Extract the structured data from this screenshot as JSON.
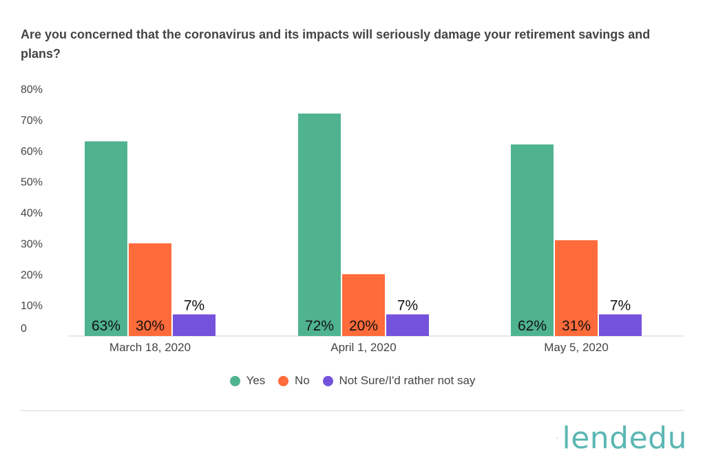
{
  "colors": {
    "yes": "#4fb390",
    "no": "#ff6b3a",
    "not_sure": "#7452dc",
    "logo": "#5bb7b3"
  },
  "chart_data": {
    "type": "bar",
    "title": "Are you concerned that the coronavirus and its impacts will seriously damage your retirement savings and plans?",
    "categories": [
      "March 18, 2020",
      "April 1, 2020",
      "May 5, 2020"
    ],
    "series": [
      {
        "name": "Yes",
        "values": [
          63,
          72,
          62
        ],
        "labels": [
          "63%",
          "72%",
          "62%"
        ],
        "color": "#4fb390"
      },
      {
        "name": "No",
        "values": [
          30,
          20,
          31
        ],
        "labels": [
          "30%",
          "20%",
          "31%"
        ],
        "color": "#ff6b3a"
      },
      {
        "name": "Not Sure/I'd rather not say",
        "values": [
          7,
          7,
          7
        ],
        "labels": [
          "7%",
          "7%",
          "7%"
        ],
        "color": "#7452dc"
      }
    ],
    "yticks": [
      "0",
      "10%",
      "20%",
      "30%",
      "40%",
      "50%",
      "60%",
      "70%",
      "80%"
    ],
    "ylim": [
      0,
      80
    ],
    "grid": false,
    "legend": "bottom-center"
  },
  "logo": {
    "text": "lendedu",
    "icon": "lendedu-logo-icon"
  }
}
